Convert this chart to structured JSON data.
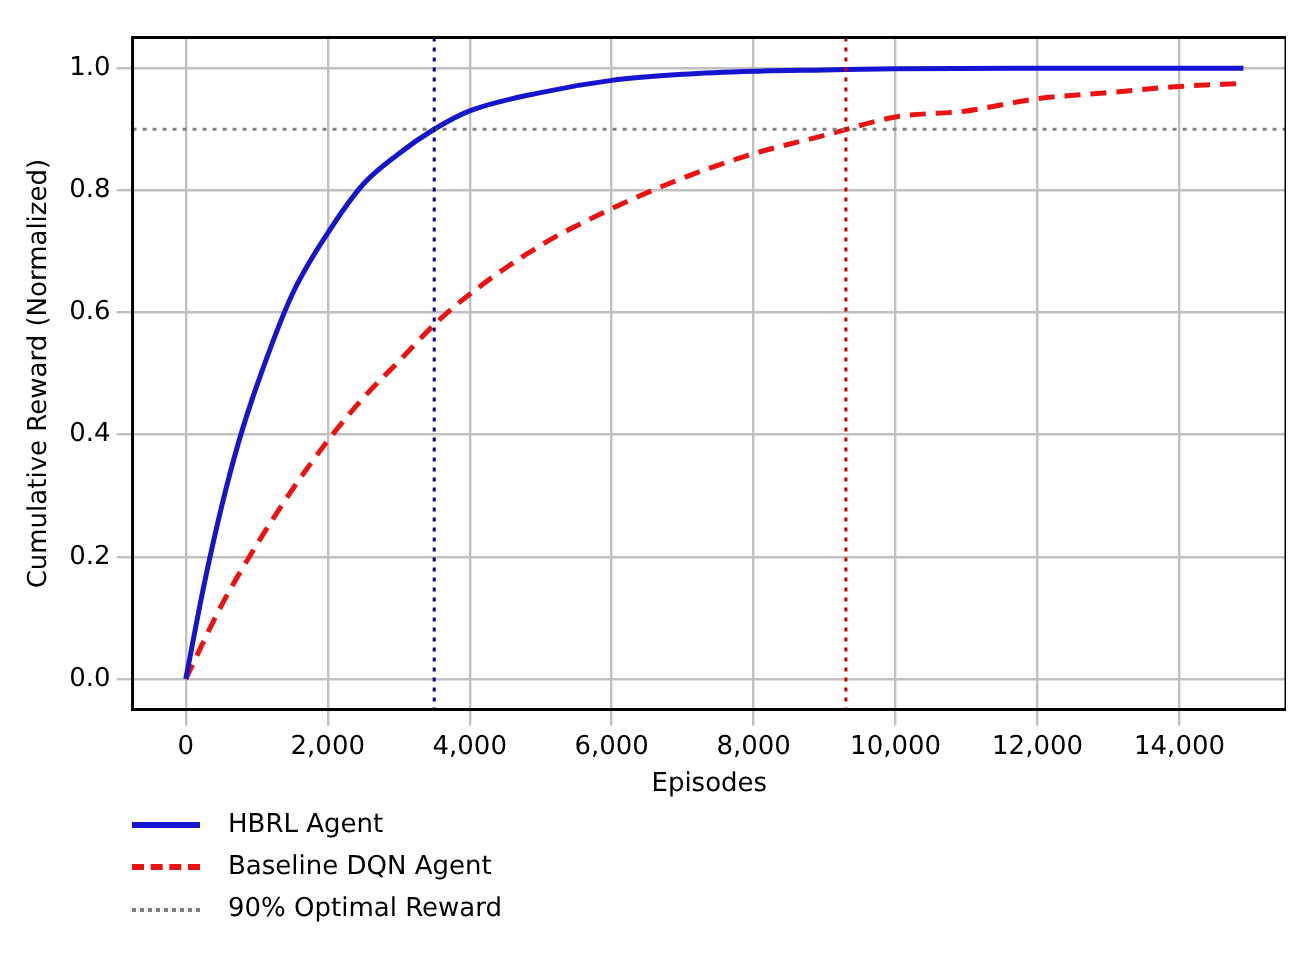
{
  "chart_data": {
    "type": "line",
    "xlabel": "Episodes",
    "ylabel": "Cumulative Reward (Normalized)",
    "xlim": [
      -750,
      15500
    ],
    "ylim": [
      -0.05,
      1.05
    ],
    "xticks": [
      {
        "value": 0,
        "label": "0"
      },
      {
        "value": 2000,
        "label": "2,000"
      },
      {
        "value": 4000,
        "label": "4,000"
      },
      {
        "value": 6000,
        "label": "6,000"
      },
      {
        "value": 8000,
        "label": "8,000"
      },
      {
        "value": 10000,
        "label": "10,000"
      },
      {
        "value": 12000,
        "label": "12,000"
      },
      {
        "value": 14000,
        "label": "14,000"
      }
    ],
    "yticks": [
      {
        "value": 0,
        "label": "0.0"
      },
      {
        "value": 0.2,
        "label": "0.2"
      },
      {
        "value": 0.4,
        "label": "0.4"
      },
      {
        "value": 0.6,
        "label": "0.6"
      },
      {
        "value": 0.8,
        "label": "0.8"
      },
      {
        "value": 1,
        "label": "1.0"
      }
    ],
    "grid": true,
    "legend": "bottom",
    "marker": "none",
    "series": [
      {
        "name": "HBRL Agent",
        "color": "#1515d0",
        "line_style": "solid",
        "x": [
          0,
          250,
          500,
          750,
          1000,
          1500,
          2000,
          2500,
          3000,
          3500,
          4000,
          5000,
          6000,
          7000,
          8000,
          9000,
          10000,
          12000,
          14900
        ],
        "values": [
          0,
          0.15,
          0.28,
          0.39,
          0.48,
          0.63,
          0.73,
          0.81,
          0.86,
          0.9,
          0.93,
          0.96,
          0.98,
          0.99,
          0.995,
          0.997,
          0.999,
          1,
          1
        ]
      },
      {
        "name": "Baseline DQN Agent",
        "color": "#ee1111",
        "line_style": "dashed",
        "x": [
          0,
          500,
          1000,
          1500,
          2000,
          2500,
          3000,
          3500,
          4000,
          5000,
          6000,
          7000,
          8000,
          9000,
          10000,
          11000,
          12000,
          13000,
          14000,
          14900
        ],
        "values": [
          0,
          0.12,
          0.22,
          0.31,
          0.39,
          0.46,
          0.52,
          0.58,
          0.63,
          0.71,
          0.77,
          0.82,
          0.86,
          0.89,
          0.92,
          0.93,
          0.95,
          0.96,
          0.97,
          0.975
        ]
      }
    ],
    "ref_lines": [
      {
        "axis": "y",
        "value": 0.9,
        "label": "90% Optimal Reward",
        "color": "#808080",
        "line_style": "dotted"
      },
      {
        "axis": "x",
        "value": 3500,
        "color": "#00008b",
        "line_style": "dotted"
      },
      {
        "axis": "x",
        "value": 9300,
        "color": "#cc0000",
        "line_style": "dotted"
      }
    ]
  }
}
